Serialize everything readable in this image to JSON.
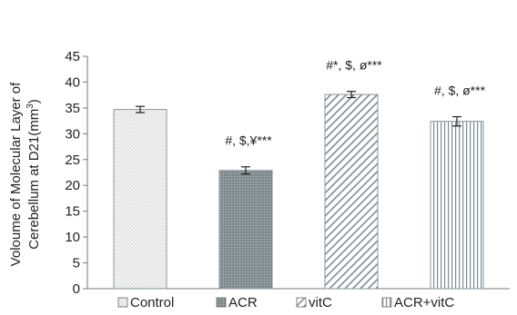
{
  "chart_data": {
    "type": "bar",
    "title": "",
    "xlabel": "",
    "ylabel": "Voloume of Molecular Layer of Cerebellum at D21(mm3)",
    "ylabel_lines": [
      "Voloume of Molecular Layer of",
      "Cerebellum at D21(mm",
      "3",
      ")"
    ],
    "ylim": [
      0,
      45
    ],
    "yticks": [
      0,
      5,
      10,
      15,
      20,
      25,
      30,
      35,
      40,
      45
    ],
    "categories": [
      "Control",
      "ACR",
      "vitC",
      "ACR+vitC"
    ],
    "values": [
      34.7,
      22.9,
      37.6,
      32.4
    ],
    "errors": [
      0.6,
      0.7,
      0.6,
      0.9
    ],
    "annotations": [
      "",
      "#, $,¥***",
      "#*, $, ø***",
      "#, $, ø***"
    ],
    "patterns": [
      "dots",
      "dense-dots",
      "diagonal",
      "vertical"
    ],
    "legend": {
      "position": "bottom",
      "entries": [
        "Control",
        "ACR",
        "vitC",
        "ACR+vitC"
      ]
    },
    "grid": false
  }
}
